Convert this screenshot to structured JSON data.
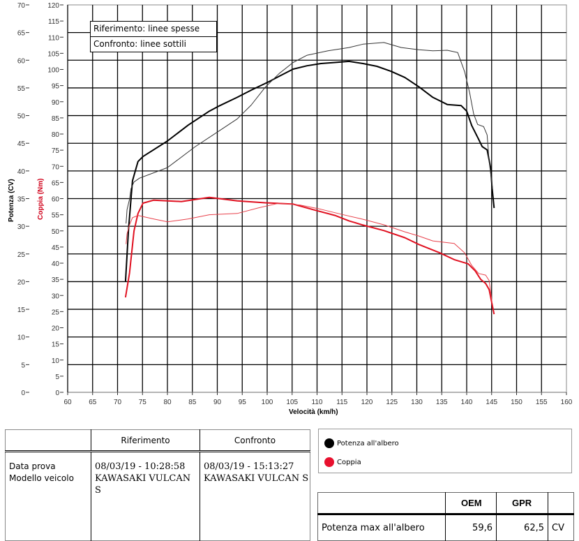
{
  "chart_data": {
    "type": "line",
    "title": "",
    "xlabel": "Velocità (km/h)",
    "ylabel": "Potenza (CV)",
    "ylabel2": "Coppia (Nm)",
    "xlim": [
      60,
      160
    ],
    "ylim": [
      0,
      70
    ],
    "ylim2": [
      0,
      120
    ],
    "x_ticks": [
      60,
      65,
      70,
      75,
      80,
      85,
      90,
      95,
      100,
      105,
      110,
      115,
      120,
      125,
      130,
      135,
      140,
      145,
      150,
      155,
      160
    ],
    "y_ticks": [
      0,
      5,
      10,
      15,
      20,
      25,
      30,
      35,
      40,
      45,
      50,
      55,
      60,
      65,
      70
    ],
    "y2_ticks": [
      0,
      5,
      10,
      15,
      20,
      25,
      30,
      35,
      40,
      45,
      50,
      55,
      60,
      65,
      70,
      75,
      80,
      85,
      90,
      95,
      100,
      105,
      110,
      115,
      120
    ],
    "grid": true,
    "annotations": [
      "Riferimento: linee spesse",
      "Confronto: linee sottili"
    ],
    "legend": [
      {
        "label": "Potenza all'albero",
        "color": "#000000"
      },
      {
        "label": "Coppia",
        "color": "#e8102e"
      }
    ],
    "series": [
      {
        "name": "Potenza all'albero - Riferimento",
        "axis": "left",
        "style": "thick",
        "color": "#000000",
        "x": [
          71.6,
          72.2,
          73.0,
          74.1,
          75.1,
          80.0,
          84.2,
          88.4,
          90.5,
          94.0,
          96.8,
          100.3,
          102.4,
          105.2,
          108.0,
          110.8,
          113.6,
          116.4,
          119.2,
          122.0,
          124.8,
          127.6,
          130.4,
          133.2,
          136.1,
          138.9,
          140.0,
          141.0,
          142.4,
          143.1,
          144.1,
          144.8,
          145.1,
          145.5
        ],
        "values": [
          20.0,
          29.4,
          38.2,
          41.7,
          42.6,
          45.4,
          48.3,
          50.8,
          51.8,
          53.3,
          54.6,
          56.1,
          57.1,
          58.4,
          59.0,
          59.4,
          59.6,
          59.8,
          59.4,
          58.9,
          58.0,
          56.9,
          55.2,
          53.3,
          52.0,
          51.8,
          50.8,
          48.2,
          45.7,
          44.4,
          43.8,
          40.6,
          36.8,
          33.3
        ]
      },
      {
        "name": "Potenza all'albero - Confronto",
        "axis": "left",
        "style": "thin",
        "color": "#000000",
        "x": [
          71.7,
          71.9,
          72.4,
          72.7,
          73.3,
          74.4,
          80.0,
          85.6,
          89.8,
          94.0,
          96.8,
          99.6,
          102.4,
          105.2,
          108.0,
          112.2,
          116.4,
          119.2,
          123.4,
          126.9,
          130.4,
          133.2,
          136.1,
          138.2,
          139.6,
          140.6,
          141.4,
          142.2,
          143.4,
          144.1,
          144.5,
          145.2
        ],
        "values": [
          30.5,
          33.0,
          34.9,
          36.8,
          38.0,
          38.7,
          40.6,
          44.4,
          46.9,
          49.4,
          51.9,
          55.1,
          57.6,
          59.6,
          60.9,
          61.7,
          62.3,
          62.9,
          63.2,
          62.3,
          61.9,
          61.7,
          61.8,
          61.4,
          57.9,
          54.1,
          50.3,
          48.4,
          48.0,
          46.5,
          41.7,
          36.7
        ]
      },
      {
        "name": "Coppia - Riferimento",
        "axis": "right",
        "style": "thick",
        "color": "#e8102e",
        "x": [
          71.6,
          72.4,
          73.3,
          74.1,
          75.1,
          77.2,
          82.8,
          88.4,
          94.0,
          99.6,
          102.4,
          105.2,
          109.4,
          113.6,
          116.4,
          119.2,
          123.4,
          127.6,
          130.4,
          134.6,
          137.5,
          140.3,
          141.7,
          142.8,
          143.8,
          144.5,
          145.5
        ],
        "values": [
          29.4,
          37.0,
          50.0,
          55.4,
          58.6,
          59.5,
          59.1,
          60.4,
          59.3,
          58.7,
          58.5,
          58.3,
          56.5,
          54.8,
          53.1,
          51.8,
          50.1,
          47.9,
          45.8,
          43.2,
          41.1,
          39.8,
          37.6,
          35.0,
          33.7,
          31.8,
          24.2
        ]
      },
      {
        "name": "Coppia - Confronto",
        "axis": "right",
        "style": "thin",
        "color": "#e8102e",
        "x": [
          71.7,
          71.9,
          72.4,
          73.0,
          74.1,
          77.2,
          80.0,
          84.2,
          88.4,
          94.0,
          98.2,
          102.4,
          106.6,
          110.8,
          115.0,
          119.2,
          123.4,
          127.6,
          130.4,
          133.2,
          137.5,
          139.6,
          141.0,
          142.4,
          143.8,
          144.5,
          145.1
        ],
        "values": [
          45.9,
          49.1,
          51.9,
          54.1,
          54.8,
          53.7,
          52.8,
          53.7,
          55.0,
          55.4,
          57.1,
          58.6,
          58.0,
          56.7,
          55.1,
          53.6,
          51.9,
          49.7,
          48.4,
          46.9,
          46.1,
          43.2,
          39.3,
          36.8,
          36.3,
          34.6,
          27.7
        ]
      }
    ]
  },
  "note": {
    "line1": "Riferimento: linee spesse",
    "line2": "Confronto: linee sottili"
  },
  "info_table": {
    "headers": [
      "",
      "Riferimento",
      "Confronto"
    ],
    "labels": [
      "Data prova",
      "Modello veicolo"
    ],
    "riferimento": [
      "08/03/19 - 10:28:58",
      "KAWASAKI VULCAN S"
    ],
    "confronto": [
      "08/03/19 - 15:13:27",
      "KAWASAKI VULCAN S"
    ]
  },
  "legend": {
    "items": [
      {
        "label": "Potenza all'albero",
        "color": "#000000"
      },
      {
        "label": "Coppia",
        "color": "#e8102e"
      }
    ]
  },
  "max_table": {
    "headers": [
      "",
      "OEM",
      "GPR",
      ""
    ],
    "rows": [
      {
        "label": "Potenza max all'albero",
        "oem": "59,6",
        "gpr": "62,5",
        "unit": "CV"
      }
    ]
  }
}
